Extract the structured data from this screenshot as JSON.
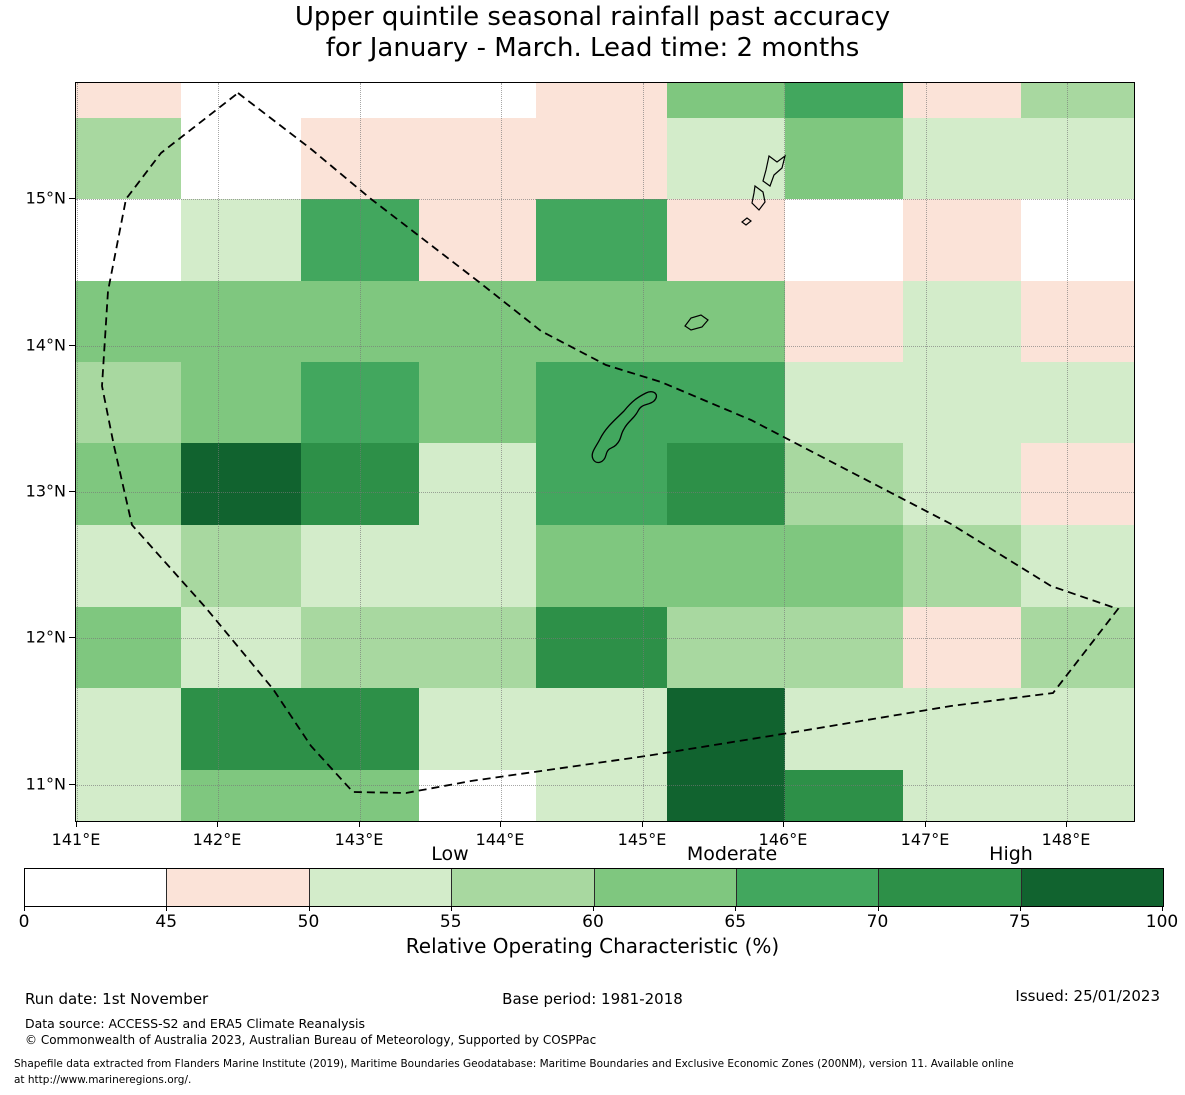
{
  "title": {
    "line1": "Upper quintile seasonal rainfall past accuracy",
    "line2": "for January - March. Lead time: 2 months"
  },
  "chart_data": {
    "type": "heatmap",
    "title": "Upper quintile seasonal rainfall past accuracy for January - March. Lead time: 2 months",
    "x_tick_labels": [
      "141°E",
      "142°E",
      "143°E",
      "144°E",
      "145°E",
      "146°E",
      "147°E",
      "148°E"
    ],
    "y_tick_labels": [
      "15°N",
      "14°N",
      "13°N",
      "12°N",
      "11°N"
    ],
    "lon_range_deg": [
      141.0,
      148.5
    ],
    "lat_range_deg": [
      10.75,
      15.8
    ],
    "grid_on": true,
    "units": "Relative Operating Characteristic (%)",
    "legend_bins": [
      "0-45",
      "45-50",
      "50-55",
      "55-60",
      "60-65",
      "65-70",
      "70-75",
      "75-100"
    ],
    "palette": {
      "0-45": "#ffffff",
      "45-50": "#fbe3d8",
      "50-55": "#d3ecca",
      "55-60": "#a8d8a0",
      "60-65": "#7fc77f",
      "65-70": "#42a75e",
      "70-75": "#2d9048",
      "75-100": "#11632f"
    },
    "grid_bins_note": "rows north-to-south (approx 15.8N to 10.75N), cols west-to-east (141E to 148.5E), values are ROC % bins",
    "grid_bins": [
      [
        "45-50",
        "0-45",
        "0-45",
        "0-45",
        "45-50",
        "60-65",
        "65-70",
        "45-50",
        "55-60"
      ],
      [
        "55-60",
        "0-45",
        "45-50",
        "45-50",
        "45-50",
        "50-55",
        "60-65",
        "50-55",
        "50-55"
      ],
      [
        "0-45",
        "50-55",
        "65-70",
        "45-50",
        "65-70",
        "45-50",
        "0-45",
        "45-50",
        "0-45"
      ],
      [
        "60-65",
        "60-65",
        "60-65",
        "60-65",
        "60-65",
        "60-65",
        "45-50",
        "50-55",
        "45-50"
      ],
      [
        "55-60",
        "60-65",
        "65-70",
        "60-65",
        "65-70",
        "65-70",
        "50-55",
        "50-55",
        "50-55"
      ],
      [
        "60-65",
        "75-100",
        "70-75",
        "50-55",
        "65-70",
        "70-75",
        "55-60",
        "50-55",
        "45-50"
      ],
      [
        "50-55",
        "55-60",
        "50-55",
        "50-55",
        "60-65",
        "60-65",
        "60-65",
        "55-60",
        "50-55"
      ],
      [
        "60-65",
        "50-55",
        "55-60",
        "55-60",
        "70-75",
        "55-60",
        "55-60",
        "45-50",
        "55-60"
      ],
      [
        "50-55",
        "70-75",
        "70-75",
        "50-55",
        "50-55",
        "75-100",
        "50-55",
        "50-55",
        "50-55"
      ],
      [
        "50-55",
        "60-65",
        "60-65",
        "0-45",
        "50-55",
        "75-100",
        "70-75",
        "50-55",
        "50-55"
      ]
    ]
  },
  "colorbar": {
    "categories": [
      "Low",
      "Moderate",
      "High"
    ],
    "tick_labels": [
      "0",
      "45",
      "50",
      "55",
      "60",
      "65",
      "70",
      "75",
      "100"
    ],
    "caption": "Relative Operating Characteristic (%)"
  },
  "footer": {
    "run_date": "Run date: 1st November",
    "base_period": "Base period: 1981-2018",
    "issued": "Issued: 25/01/2023",
    "data_source": "Data source: ACCESS-S2 and ERA5 Climate Reanalysis",
    "copyright": "© Commonwealth of Australia 2023, Australian Bureau of Meteorology, Supported by COSPPac",
    "shapefile_line1": "Shapefile data extracted from Flanders Marine Institute (2019), Maritime Boundaries Geodatabase: Maritime Boundaries and Exclusive Economic Zones (200NM), version 11. Available online",
    "shapefile_line2": "at http://www.marineregions.org/."
  }
}
